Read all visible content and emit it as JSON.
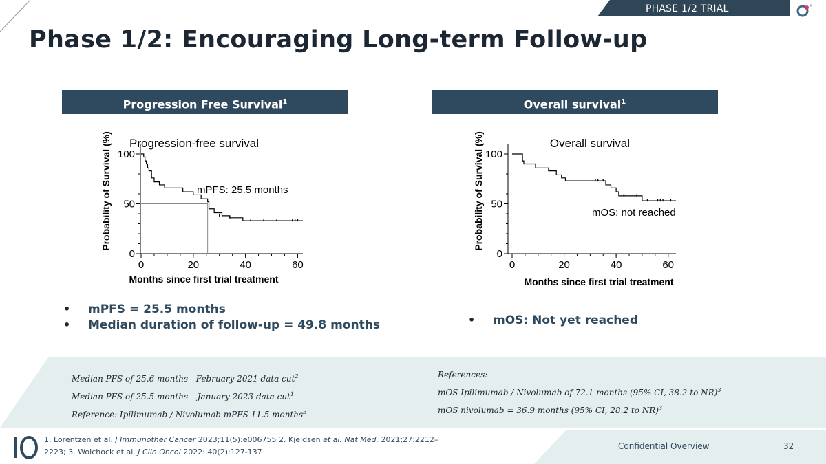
{
  "header": {
    "trial_tag": "PHASE 1/2 TRIAL",
    "title": "Phase 1/2: Encouraging Long-term Follow-up"
  },
  "sections": {
    "pfs_label": "Progression Free Survival",
    "pfs_sup": "1",
    "os_label": "Overall survival",
    "os_sup": "1"
  },
  "chart_data": [
    {
      "type": "line",
      "title": "Progression-free survival",
      "xlabel": "Months since first trial treatment",
      "ylabel": "Probability of Survival (%)",
      "xlim": [
        0,
        62
      ],
      "ylim": [
        0,
        100
      ],
      "xticks": [
        0,
        20,
        40,
        60
      ],
      "yticks": [
        0,
        50,
        100
      ],
      "annotation": "mPFS: 25.5 months",
      "median_line": {
        "x": 25.5,
        "y": 50
      },
      "series": [
        {
          "name": "PFS",
          "steps": [
            [
              0,
              100
            ],
            [
              1,
              97
            ],
            [
              1.5,
              93
            ],
            [
              2,
              90
            ],
            [
              2.5,
              86
            ],
            [
              3,
              83
            ],
            [
              4,
              76
            ],
            [
              5,
              72
            ],
            [
              7,
              69
            ],
            [
              9,
              66
            ],
            [
              12,
              66
            ],
            [
              16,
              62
            ],
            [
              20,
              59
            ],
            [
              23,
              55
            ],
            [
              25.5,
              52
            ],
            [
              26,
              45
            ],
            [
              28,
              41
            ],
            [
              31,
              38
            ],
            [
              34,
              36
            ],
            [
              39,
              33
            ],
            [
              62,
              33
            ]
          ],
          "censored": [
            [
              30,
              38
            ],
            [
              34,
              36
            ],
            [
              42,
              33
            ],
            [
              47,
              33
            ],
            [
              52,
              33
            ],
            [
              58,
              33
            ],
            [
              59,
              33
            ],
            [
              60,
              33
            ]
          ]
        }
      ]
    },
    {
      "type": "line",
      "title": "Overall survival",
      "xlabel": "Months since first trial treatment",
      "ylabel": "Probability of Survival (%)",
      "xlim": [
        0,
        63
      ],
      "ylim": [
        0,
        100
      ],
      "xticks": [
        0,
        20,
        40,
        60
      ],
      "yticks": [
        0,
        50,
        100
      ],
      "annotation": "mOS: not reached",
      "series": [
        {
          "name": "OS",
          "steps": [
            [
              0,
              100
            ],
            [
              4,
              93
            ],
            [
              4.5,
              90
            ],
            [
              9,
              86
            ],
            [
              14,
              83
            ],
            [
              17,
              79
            ],
            [
              19,
              76
            ],
            [
              20.5,
              73
            ],
            [
              35,
              73
            ],
            [
              36,
              69
            ],
            [
              38,
              66
            ],
            [
              40,
              62
            ],
            [
              41,
              58
            ],
            [
              45,
              58
            ],
            [
              47,
              58
            ],
            [
              50,
              53
            ],
            [
              63,
              53
            ]
          ],
          "censored": [
            [
              32,
              73
            ],
            [
              33,
              73
            ],
            [
              35,
              73
            ],
            [
              43,
              58
            ],
            [
              48,
              58
            ],
            [
              52,
              53
            ],
            [
              56,
              53
            ],
            [
              57,
              53
            ],
            [
              58,
              53
            ],
            [
              61,
              53
            ]
          ]
        }
      ]
    }
  ],
  "bullets_left": [
    "mPFS = 25.5 months",
    "Median duration of follow-up = 49.8 months"
  ],
  "bullets_right": [
    "mOS: Not yet reached"
  ],
  "notes_left": [
    {
      "text": "Median PFS of 25.6 months - February 2021 data cut",
      "sup": "2"
    },
    {
      "text": "Median PFS of 25.5 months – January 2023 data cut",
      "sup": "1"
    },
    {
      "text": "Reference: Ipilimumab / Nivolumab mPFS 11.5 months",
      "sup": "3"
    }
  ],
  "notes_right": [
    {
      "text": "References:",
      "sup": ""
    },
    {
      "text": "mOS Ipilimumab / Nivolumab of 72.1 months (95% CI, 38.2 to NR)",
      "sup": "3"
    },
    {
      "text": "mOS nivolumab = 36.9 months (95% CI, 28.2 to NR)",
      "sup": "3"
    }
  ],
  "footer": {
    "ref1_pre": "1. Lorentzen et al. ",
    "ref1_journal": "J Immunother Cancer",
    "ref1_post": " 2023;11(5):e006755 2. Kjeldsen ",
    "ref2_etal": "et al. Nat Med.",
    "ref2_post": " 2021;27:2212– 2223;     3. Wolchock et al. ",
    "ref3_journal": "J Clin Oncol",
    "ref3_post": " 2022: 40(2):127-137",
    "confidential": "Confidential Overview",
    "page_number": "32"
  },
  "colors": {
    "header_dark": "#2f4a5e",
    "band": "#e4eeee"
  }
}
